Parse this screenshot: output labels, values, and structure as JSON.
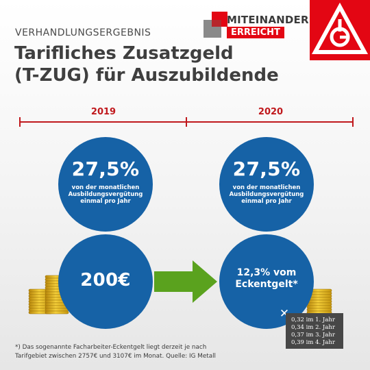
{
  "header": {
    "eyebrow": "VERHANDLUNGSERGEBNIS",
    "title_line1": "Tarifliches Zusatzgeld",
    "title_line2": "(T-ZUG) für Auszubildende"
  },
  "brand": {
    "line1": "MITEINANDER",
    "line2": "ERREICHT",
    "logo_text": "IGM",
    "colors": {
      "red": "#e30613",
      "grey": "#8a8a8a",
      "blue": "#1662a6",
      "green": "#5aa21e"
    }
  },
  "timeline": {
    "years": [
      "2019",
      "2020"
    ]
  },
  "col_2019": {
    "percent": "27,5%",
    "desc_lines": [
      "von der monatlichen",
      "Ausbildungsvergütung",
      "einmal pro Jahr"
    ],
    "amount": "200€"
  },
  "col_2020": {
    "percent": "27,5%",
    "desc_lines": [
      "von der monatlichen",
      "Ausbildungsvergütung",
      "einmal pro Jahr"
    ],
    "amount_lines": [
      "12,3% vom",
      "Eckentgelt*"
    ]
  },
  "info": {
    "close_symbol": "✕",
    "lines": [
      "0,32 im 1. Jahr",
      "0,34 im 2. Jahr",
      "0,37 im 3. Jahr",
      "0,39 im 4. Jahr"
    ]
  },
  "footnote": {
    "line1": "*) Das sogenannte Facharbeiter-Eckentgelt liegt derzeit je nach",
    "line2": "Tarifgebiet zwischen 2757€ und 3107€ im Monat. Quelle: IG Metall"
  }
}
